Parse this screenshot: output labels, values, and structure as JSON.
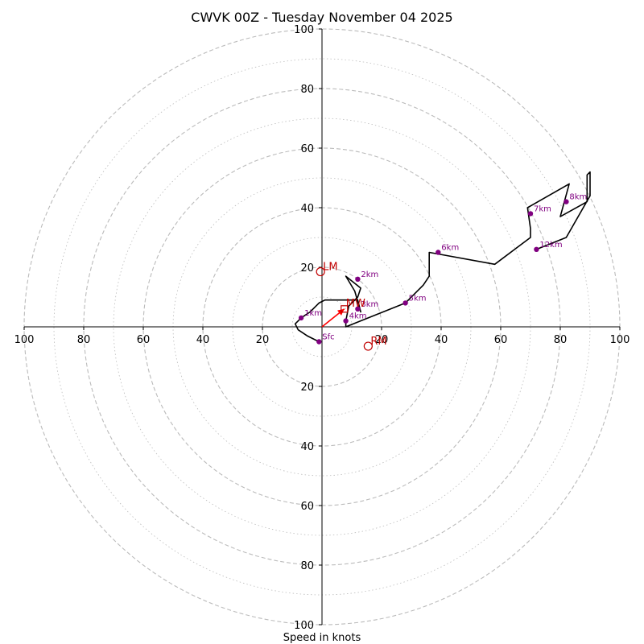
{
  "chart_data": {
    "type": "hodograph",
    "title": "CWVK 00Z - Tuesday November 04 2025",
    "xlabel": "Speed in knots",
    "max_speed": 100,
    "rings_dashed": [
      20,
      40,
      60,
      80,
      100
    ],
    "rings_dotted": [
      10,
      30,
      50,
      70,
      90
    ],
    "tick_values": [
      20,
      40,
      60,
      80,
      100
    ],
    "axis_ticks": {
      "left": [
        "100",
        "80",
        "60",
        "40",
        "20"
      ],
      "right": [
        "20",
        "40",
        "60",
        "80",
        "100"
      ],
      "top": [
        "100",
        "80",
        "60",
        "40",
        "20"
      ],
      "bottom": [
        "20",
        "40",
        "60",
        "80",
        "100"
      ]
    },
    "profile": [
      [
        -1,
        -5
      ],
      [
        -5,
        -3
      ],
      [
        -8,
        -1
      ],
      [
        -9,
        1
      ],
      [
        -7,
        3
      ],
      [
        -4,
        5
      ],
      [
        -1,
        8
      ],
      [
        1,
        9
      ],
      [
        12,
        9
      ],
      [
        13,
        5
      ],
      [
        11,
        12
      ],
      [
        8,
        17
      ],
      [
        13,
        13
      ],
      [
        12,
        10
      ],
      [
        9,
        7
      ],
      [
        8,
        2
      ],
      [
        8,
        0
      ],
      [
        28,
        8
      ],
      [
        34,
        14
      ],
      [
        36,
        17
      ],
      [
        36,
        25
      ],
      [
        58,
        21
      ],
      [
        70,
        30
      ],
      [
        70,
        33
      ],
      [
        69,
        40
      ],
      [
        83,
        48
      ],
      [
        80,
        37
      ],
      [
        89,
        42
      ],
      [
        89,
        51
      ],
      [
        90,
        52
      ],
      [
        90,
        44
      ],
      [
        82,
        30
      ],
      [
        72,
        26
      ]
    ],
    "height_points": [
      {
        "label": "Sfc",
        "u": -1,
        "v": -5
      },
      {
        "label": "1km",
        "u": -7,
        "v": 3
      },
      {
        "label": "2km",
        "u": 12,
        "v": 16
      },
      {
        "label": "3km",
        "u": 12,
        "v": 6
      },
      {
        "label": "4km",
        "u": 8,
        "v": 2
      },
      {
        "label": "5km",
        "u": 28,
        "v": 8
      },
      {
        "label": "6km",
        "u": 39,
        "v": 25
      },
      {
        "label": "7km",
        "u": 70,
        "v": 38
      },
      {
        "label": "8km",
        "u": 82,
        "v": 42
      },
      {
        "label": "12km",
        "u": 72,
        "v": 26
      }
    ],
    "markers": {
      "lm": {
        "label": "LM",
        "u": -0.5,
        "v": 18.5
      },
      "rm": {
        "label": "RM",
        "u": 15.5,
        "v": -6.5
      },
      "mw": {
        "label": "MW",
        "u": 7.5,
        "v": 6
      }
    },
    "storm_motion_arrow": {
      "from": [
        0,
        0
      ],
      "to": [
        7.5,
        6
      ]
    },
    "colors": {
      "profile": "#000000",
      "points": "#800080",
      "markers": "#c00000",
      "arrow": "#ff0000",
      "rings": "#bbbbbb"
    }
  }
}
